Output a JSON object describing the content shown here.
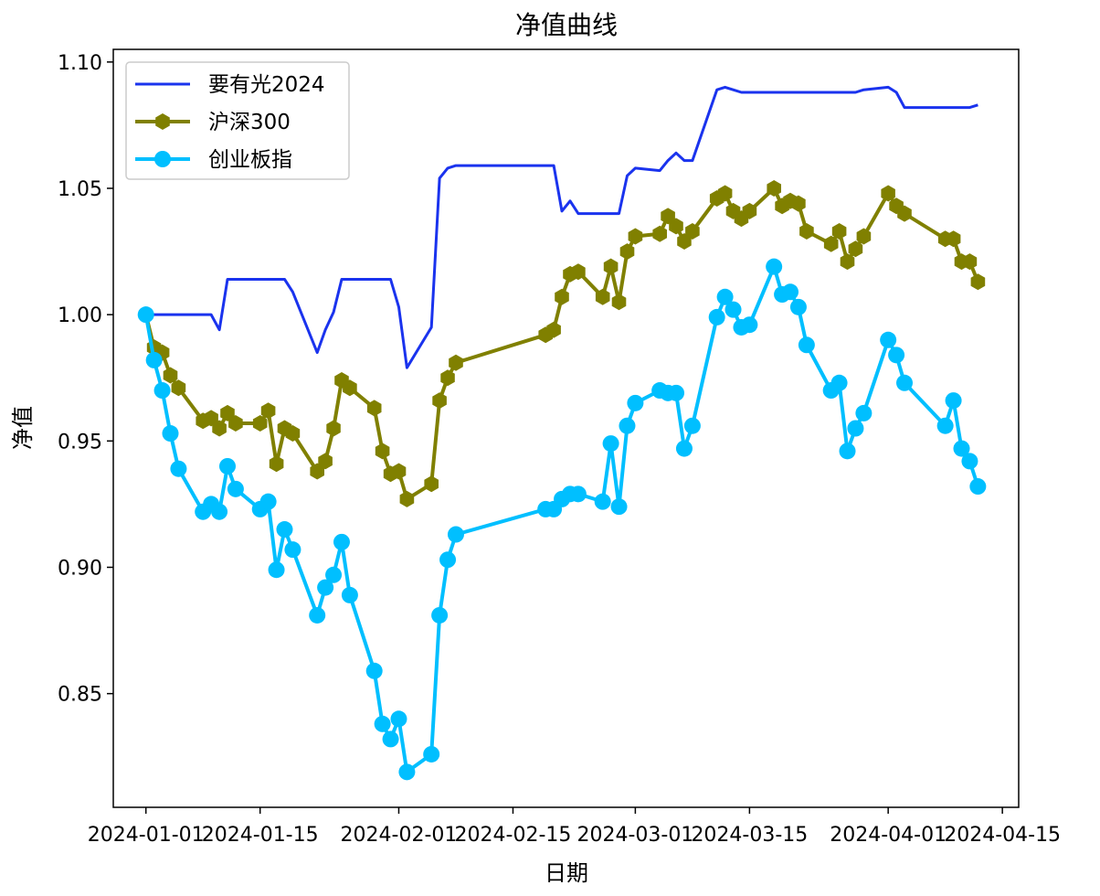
{
  "chart_data": {
    "type": "line",
    "title": "净值曲线",
    "xlabel": "日期",
    "ylabel": "净值",
    "xlim": [
      "2023-12-28",
      "2024-04-17"
    ],
    "ylim": [
      0.805,
      1.105
    ],
    "x_ticks": [
      "2024-01-01",
      "2024-01-15",
      "2024-02-01",
      "2024-02-15",
      "2024-03-01",
      "2024-03-15",
      "2024-04-01",
      "2024-04-15"
    ],
    "x_tick_labels": [
      "2024-01-01",
      "2024-01-15",
      "2024-02-01",
      "2024-02-15",
      "2024-03-01",
      "2024-03-15",
      "2024-04-01",
      "2024-04-15"
    ],
    "y_ticks": [
      0.85,
      0.9,
      0.95,
      1.0,
      1.05,
      1.1
    ],
    "y_tick_labels": [
      "0.85",
      "0.90",
      "0.95",
      "1.00",
      "1.05",
      "1.10"
    ],
    "grid": false,
    "legend_position": "top-left",
    "series": [
      {
        "name": "要有光2024",
        "color": "#1a33ee",
        "marker": "none",
        "line_width": 3,
        "points": [
          [
            "2024-01-01",
            1.0
          ],
          [
            "2024-01-02",
            1.0
          ],
          [
            "2024-01-03",
            1.0
          ],
          [
            "2024-01-04",
            1.0
          ],
          [
            "2024-01-05",
            1.0
          ],
          [
            "2024-01-08",
            1.0
          ],
          [
            "2024-01-09",
            1.0
          ],
          [
            "2024-01-10",
            0.994
          ],
          [
            "2024-01-11",
            1.014
          ],
          [
            "2024-01-12",
            1.014
          ],
          [
            "2024-01-15",
            1.014
          ],
          [
            "2024-01-16",
            1.014
          ],
          [
            "2024-01-17",
            1.014
          ],
          [
            "2024-01-18",
            1.014
          ],
          [
            "2024-01-19",
            1.009
          ],
          [
            "2024-01-22",
            0.985
          ],
          [
            "2024-01-23",
            0.994
          ],
          [
            "2024-01-24",
            1.001
          ],
          [
            "2024-01-25",
            1.014
          ],
          [
            "2024-01-26",
            1.014
          ],
          [
            "2024-01-29",
            1.014
          ],
          [
            "2024-01-30",
            1.014
          ],
          [
            "2024-01-31",
            1.014
          ],
          [
            "2024-02-01",
            1.003
          ],
          [
            "2024-02-02",
            0.979
          ],
          [
            "2024-02-05",
            0.995
          ],
          [
            "2024-02-06",
            1.054
          ],
          [
            "2024-02-07",
            1.058
          ],
          [
            "2024-02-08",
            1.059
          ],
          [
            "2024-02-19",
            1.059
          ],
          [
            "2024-02-20",
            1.059
          ],
          [
            "2024-02-21",
            1.041
          ],
          [
            "2024-02-22",
            1.045
          ],
          [
            "2024-02-23",
            1.04
          ],
          [
            "2024-02-26",
            1.04
          ],
          [
            "2024-02-27",
            1.04
          ],
          [
            "2024-02-28",
            1.04
          ],
          [
            "2024-02-29",
            1.055
          ],
          [
            "2024-03-01",
            1.058
          ],
          [
            "2024-03-04",
            1.057
          ],
          [
            "2024-03-05",
            1.061
          ],
          [
            "2024-03-06",
            1.064
          ],
          [
            "2024-03-07",
            1.061
          ],
          [
            "2024-03-08",
            1.061
          ],
          [
            "2024-03-11",
            1.089
          ],
          [
            "2024-03-12",
            1.09
          ],
          [
            "2024-03-13",
            1.089
          ],
          [
            "2024-03-14",
            1.088
          ],
          [
            "2024-03-15",
            1.088
          ],
          [
            "2024-03-18",
            1.088
          ],
          [
            "2024-03-19",
            1.088
          ],
          [
            "2024-03-20",
            1.088
          ],
          [
            "2024-03-21",
            1.088
          ],
          [
            "2024-03-22",
            1.088
          ],
          [
            "2024-03-25",
            1.088
          ],
          [
            "2024-03-26",
            1.088
          ],
          [
            "2024-03-27",
            1.088
          ],
          [
            "2024-03-28",
            1.088
          ],
          [
            "2024-03-29",
            1.089
          ],
          [
            "2024-04-01",
            1.09
          ],
          [
            "2024-04-02",
            1.088
          ],
          [
            "2024-04-03",
            1.082
          ],
          [
            "2024-04-08",
            1.082
          ],
          [
            "2024-04-09",
            1.082
          ],
          [
            "2024-04-10",
            1.082
          ],
          [
            "2024-04-11",
            1.082
          ],
          [
            "2024-04-12",
            1.083
          ]
        ]
      },
      {
        "name": "沪深300",
        "color": "#808000",
        "marker": "hexagon",
        "line_width": 4,
        "points": [
          [
            "2024-01-01",
            1.0
          ],
          [
            "2024-01-02",
            0.987
          ],
          [
            "2024-01-03",
            0.985
          ],
          [
            "2024-01-04",
            0.976
          ],
          [
            "2024-01-05",
            0.971
          ],
          [
            "2024-01-08",
            0.958
          ],
          [
            "2024-01-09",
            0.959
          ],
          [
            "2024-01-10",
            0.955
          ],
          [
            "2024-01-11",
            0.961
          ],
          [
            "2024-01-12",
            0.957
          ],
          [
            "2024-01-15",
            0.957
          ],
          [
            "2024-01-16",
            0.962
          ],
          [
            "2024-01-17",
            0.941
          ],
          [
            "2024-01-18",
            0.955
          ],
          [
            "2024-01-19",
            0.953
          ],
          [
            "2024-01-22",
            0.938
          ],
          [
            "2024-01-23",
            0.942
          ],
          [
            "2024-01-24",
            0.955
          ],
          [
            "2024-01-25",
            0.974
          ],
          [
            "2024-01-26",
            0.971
          ],
          [
            "2024-01-29",
            0.963
          ],
          [
            "2024-01-30",
            0.946
          ],
          [
            "2024-01-31",
            0.937
          ],
          [
            "2024-02-01",
            0.938
          ],
          [
            "2024-02-02",
            0.927
          ],
          [
            "2024-02-05",
            0.933
          ],
          [
            "2024-02-06",
            0.966
          ],
          [
            "2024-02-07",
            0.975
          ],
          [
            "2024-02-08",
            0.981
          ],
          [
            "2024-02-19",
            0.992
          ],
          [
            "2024-02-20",
            0.994
          ],
          [
            "2024-02-21",
            1.007
          ],
          [
            "2024-02-22",
            1.016
          ],
          [
            "2024-02-23",
            1.017
          ],
          [
            "2024-02-26",
            1.007
          ],
          [
            "2024-02-27",
            1.019
          ],
          [
            "2024-02-28",
            1.005
          ],
          [
            "2024-02-29",
            1.025
          ],
          [
            "2024-03-01",
            1.031
          ],
          [
            "2024-03-04",
            1.032
          ],
          [
            "2024-03-05",
            1.039
          ],
          [
            "2024-03-06",
            1.035
          ],
          [
            "2024-03-07",
            1.029
          ],
          [
            "2024-03-08",
            1.033
          ],
          [
            "2024-03-11",
            1.046
          ],
          [
            "2024-03-12",
            1.048
          ],
          [
            "2024-03-13",
            1.041
          ],
          [
            "2024-03-14",
            1.038
          ],
          [
            "2024-03-15",
            1.041
          ],
          [
            "2024-03-18",
            1.05
          ],
          [
            "2024-03-19",
            1.043
          ],
          [
            "2024-03-20",
            1.045
          ],
          [
            "2024-03-21",
            1.044
          ],
          [
            "2024-03-22",
            1.033
          ],
          [
            "2024-03-25",
            1.028
          ],
          [
            "2024-03-26",
            1.033
          ],
          [
            "2024-03-27",
            1.021
          ],
          [
            "2024-03-28",
            1.026
          ],
          [
            "2024-03-29",
            1.031
          ],
          [
            "2024-04-01",
            1.048
          ],
          [
            "2024-04-02",
            1.043
          ],
          [
            "2024-04-03",
            1.04
          ],
          [
            "2024-04-08",
            1.03
          ],
          [
            "2024-04-09",
            1.03
          ],
          [
            "2024-04-10",
            1.021
          ],
          [
            "2024-04-11",
            1.021
          ],
          [
            "2024-04-12",
            1.013
          ]
        ]
      },
      {
        "name": "创业板指",
        "color": "#00bfff",
        "marker": "circle",
        "line_width": 4,
        "points": [
          [
            "2024-01-01",
            1.0
          ],
          [
            "2024-01-02",
            0.982
          ],
          [
            "2024-01-03",
            0.97
          ],
          [
            "2024-01-04",
            0.953
          ],
          [
            "2024-01-05",
            0.939
          ],
          [
            "2024-01-08",
            0.922
          ],
          [
            "2024-01-09",
            0.925
          ],
          [
            "2024-01-10",
            0.922
          ],
          [
            "2024-01-11",
            0.94
          ],
          [
            "2024-01-12",
            0.931
          ],
          [
            "2024-01-15",
            0.923
          ],
          [
            "2024-01-16",
            0.926
          ],
          [
            "2024-01-17",
            0.899
          ],
          [
            "2024-01-18",
            0.915
          ],
          [
            "2024-01-19",
            0.907
          ],
          [
            "2024-01-22",
            0.881
          ],
          [
            "2024-01-23",
            0.892
          ],
          [
            "2024-01-24",
            0.897
          ],
          [
            "2024-01-25",
            0.91
          ],
          [
            "2024-01-26",
            0.889
          ],
          [
            "2024-01-29",
            0.859
          ],
          [
            "2024-01-30",
            0.838
          ],
          [
            "2024-01-31",
            0.832
          ],
          [
            "2024-02-01",
            0.84
          ],
          [
            "2024-02-02",
            0.819
          ],
          [
            "2024-02-05",
            0.826
          ],
          [
            "2024-02-06",
            0.881
          ],
          [
            "2024-02-07",
            0.903
          ],
          [
            "2024-02-08",
            0.913
          ],
          [
            "2024-02-19",
            0.923
          ],
          [
            "2024-02-20",
            0.923
          ],
          [
            "2024-02-21",
            0.927
          ],
          [
            "2024-02-22",
            0.929
          ],
          [
            "2024-02-23",
            0.929
          ],
          [
            "2024-02-26",
            0.926
          ],
          [
            "2024-02-27",
            0.949
          ],
          [
            "2024-02-28",
            0.924
          ],
          [
            "2024-02-29",
            0.956
          ],
          [
            "2024-03-01",
            0.965
          ],
          [
            "2024-03-04",
            0.97
          ],
          [
            "2024-03-05",
            0.969
          ],
          [
            "2024-03-06",
            0.969
          ],
          [
            "2024-03-07",
            0.947
          ],
          [
            "2024-03-08",
            0.956
          ],
          [
            "2024-03-11",
            0.999
          ],
          [
            "2024-03-12",
            1.007
          ],
          [
            "2024-03-13",
            1.002
          ],
          [
            "2024-03-14",
            0.995
          ],
          [
            "2024-03-15",
            0.996
          ],
          [
            "2024-03-18",
            1.019
          ],
          [
            "2024-03-19",
            1.008
          ],
          [
            "2024-03-20",
            1.009
          ],
          [
            "2024-03-21",
            1.003
          ],
          [
            "2024-03-22",
            0.988
          ],
          [
            "2024-03-25",
            0.97
          ],
          [
            "2024-03-26",
            0.973
          ],
          [
            "2024-03-27",
            0.946
          ],
          [
            "2024-03-28",
            0.955
          ],
          [
            "2024-03-29",
            0.961
          ],
          [
            "2024-04-01",
            0.99
          ],
          [
            "2024-04-02",
            0.984
          ],
          [
            "2024-04-03",
            0.973
          ],
          [
            "2024-04-08",
            0.956
          ],
          [
            "2024-04-09",
            0.966
          ],
          [
            "2024-04-10",
            0.947
          ],
          [
            "2024-04-11",
            0.942
          ],
          [
            "2024-04-12",
            0.932
          ]
        ]
      }
    ]
  }
}
